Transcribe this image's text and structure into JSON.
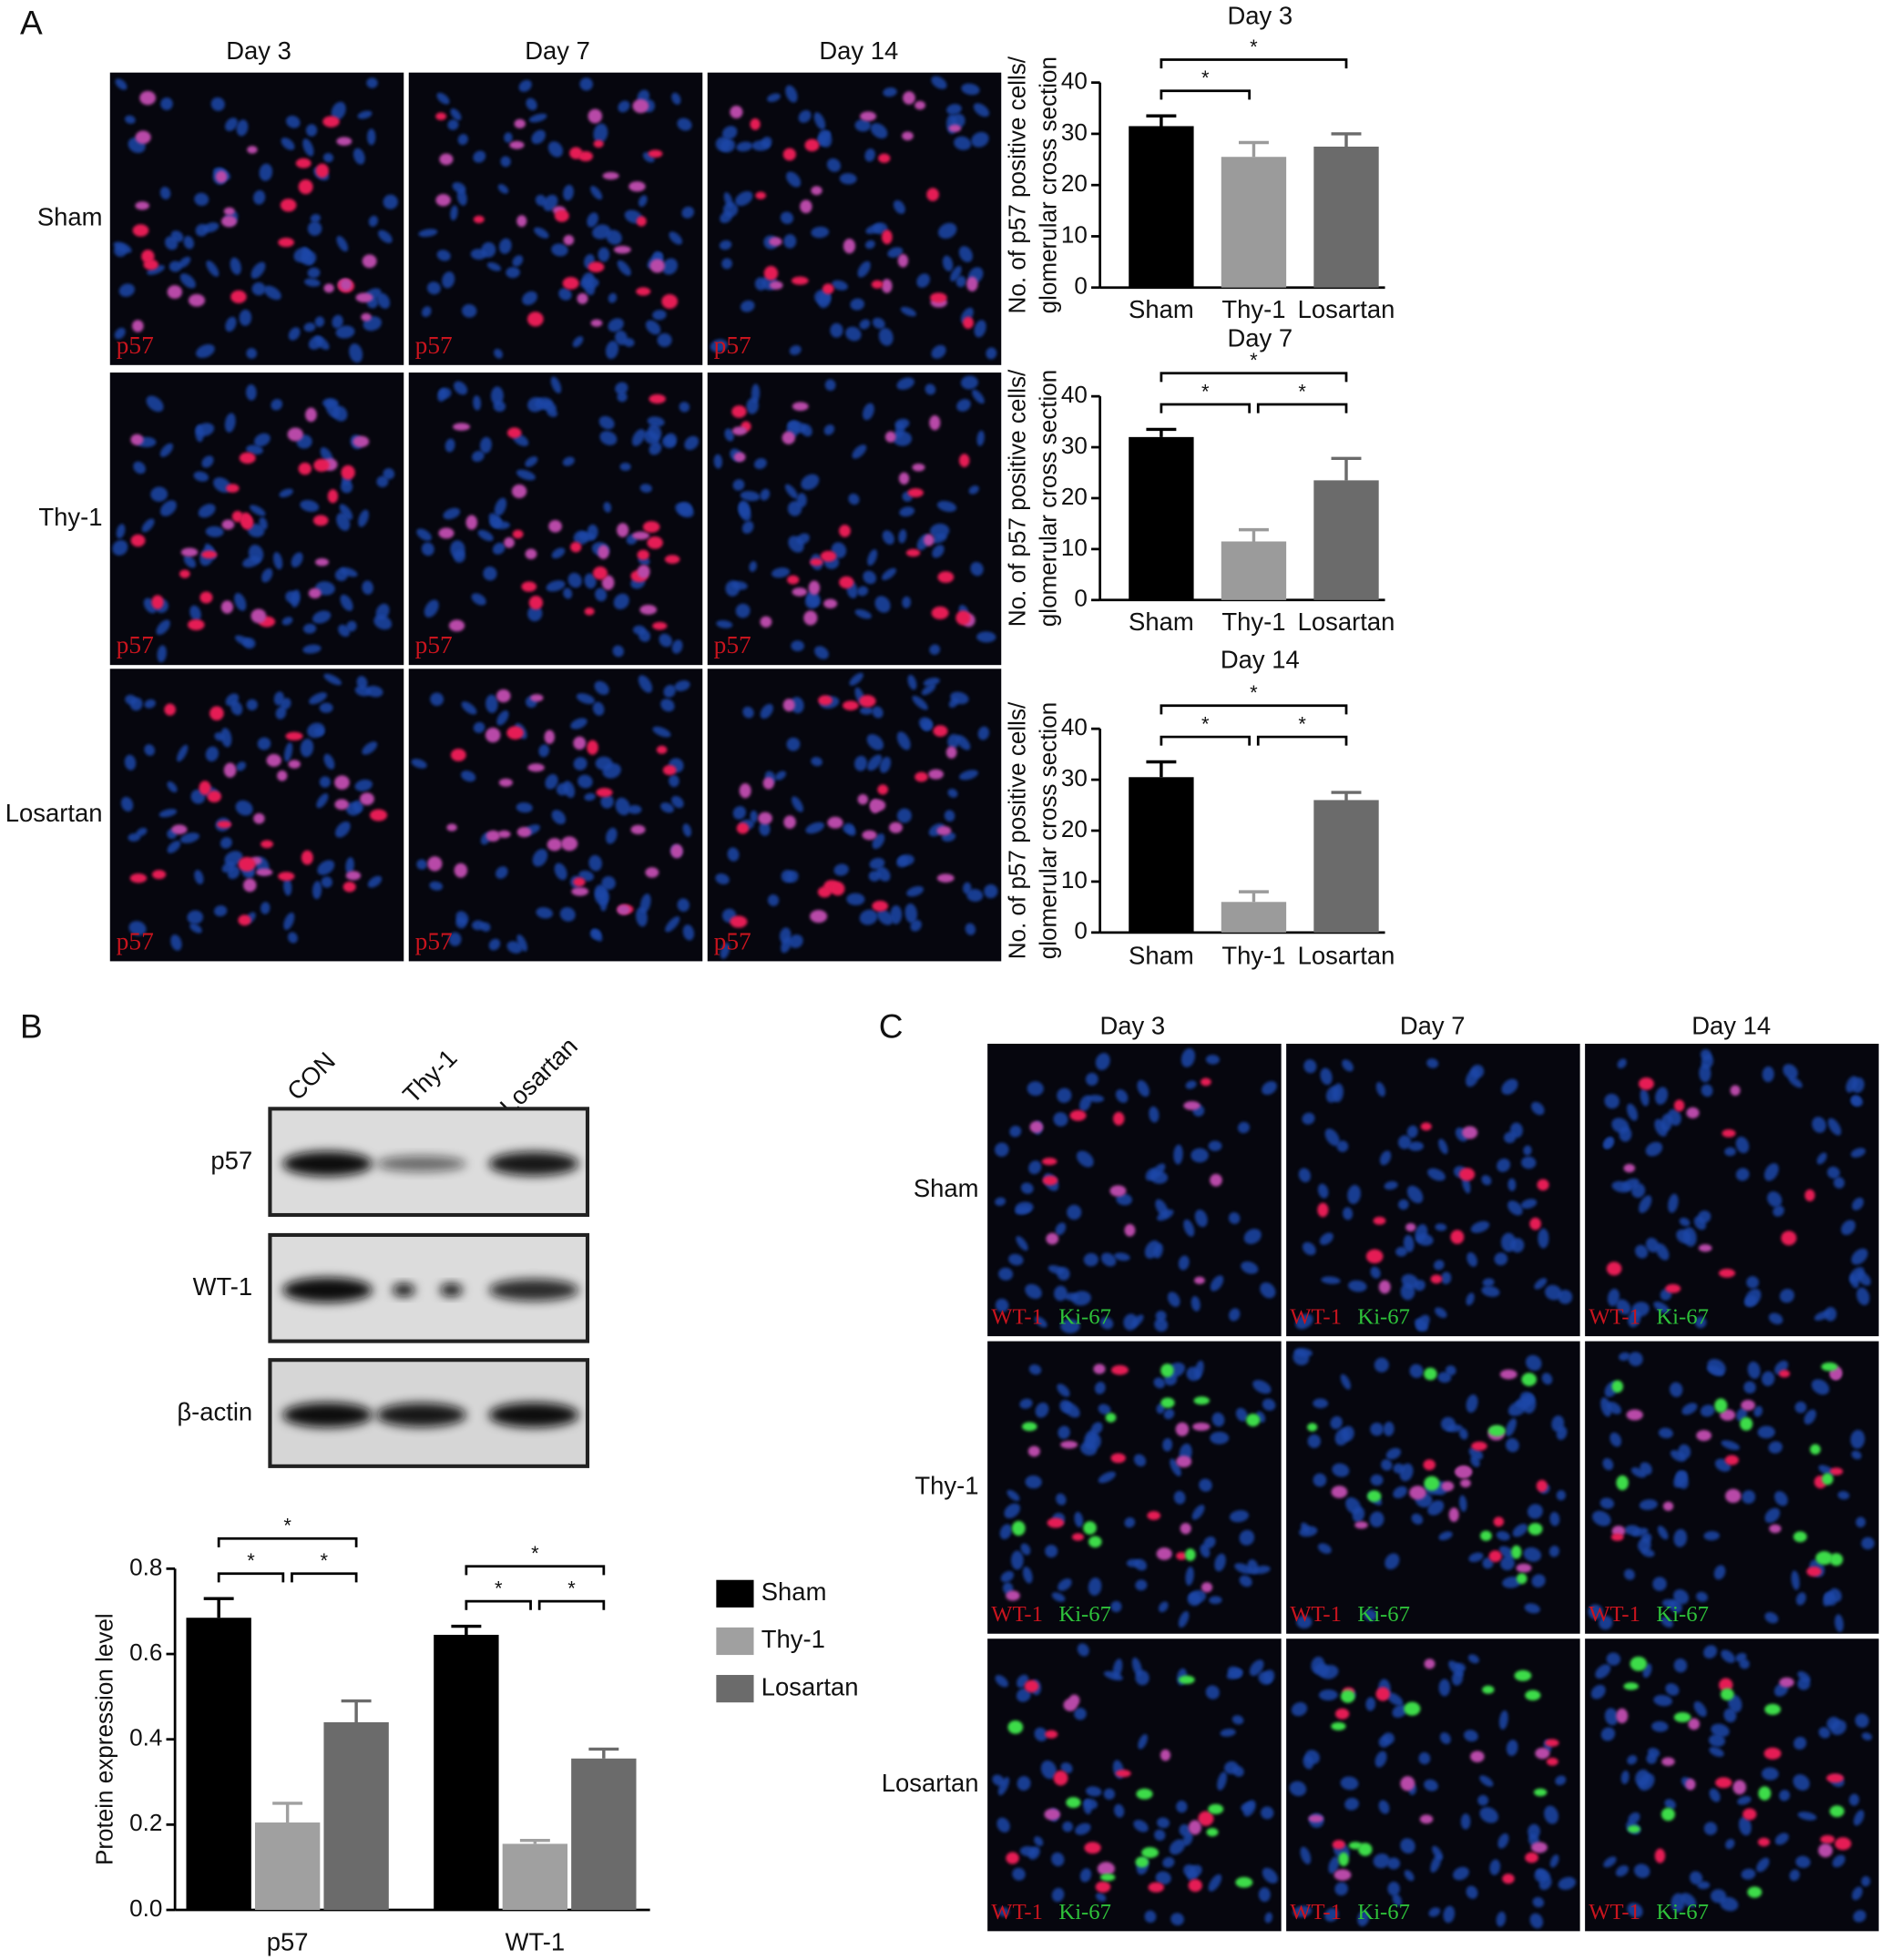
{
  "panel_labels": [
    "A",
    "B",
    "C"
  ],
  "panel_a": {
    "columns": [
      "Day 3",
      "Day 7",
      "Day 14"
    ],
    "rows": [
      "Sham",
      "Thy-1",
      "Losartan"
    ],
    "stain": "p57"
  },
  "blot": {
    "lanes": [
      "CON",
      "Thy-1",
      "Losartan"
    ],
    "bands": [
      "p57",
      "WT-1",
      "β-actin"
    ]
  },
  "panel_c": {
    "columns": [
      "Day 3",
      "Day 7",
      "Day 14"
    ],
    "rows": [
      "Sham",
      "Thy-1",
      "Losartan"
    ],
    "stain_red": "WT-1",
    "stain_green": "Ki-67"
  },
  "chart_data": [
    {
      "type": "bar",
      "title": "Day 3",
      "ylabel": [
        "No. of p57 positive cells/",
        "glomerular cross section"
      ],
      "categories": [
        "Sham",
        "Thy-1",
        "Losartan"
      ],
      "values": [
        31.5,
        25.5,
        27.5
      ],
      "errors": [
        2,
        2.8,
        2.5
      ],
      "colors": [
        "#000000",
        "#9b9b9b",
        "#6b6b6b"
      ],
      "ylim": [
        0,
        40
      ],
      "yticks": [
        0,
        10,
        20,
        30,
        40
      ],
      "brackets": [
        {
          "between": [
            "Sham",
            "Losartan"
          ],
          "label": "*"
        },
        {
          "between": [
            "Sham",
            "Thy-1"
          ],
          "label": "*"
        }
      ]
    },
    {
      "type": "bar",
      "title": "Day 7",
      "ylabel": [
        "No. of p57 positive cells/",
        "glomerular cross section"
      ],
      "categories": [
        "Sham",
        "Thy-1",
        "Losartan"
      ],
      "values": [
        32,
        11.5,
        23.5
      ],
      "errors": [
        1.5,
        2.3,
        4.3
      ],
      "colors": [
        "#000000",
        "#9b9b9b",
        "#6b6b6b"
      ],
      "ylim": [
        0,
        40
      ],
      "yticks": [
        0,
        10,
        20,
        30,
        40
      ],
      "brackets": [
        {
          "between": [
            "Sham",
            "Losartan"
          ],
          "label": "*"
        },
        {
          "between": [
            "Sham",
            "Thy-1"
          ],
          "label": "*"
        },
        {
          "between": [
            "Thy-1",
            "Losartan"
          ],
          "label": "*"
        }
      ]
    },
    {
      "type": "bar",
      "title": "Day 14",
      "ylabel": [
        "No. of p57 positive cells/",
        "glomerular cross section"
      ],
      "categories": [
        "Sham",
        "Thy-1",
        "Losartan"
      ],
      "values": [
        30.5,
        6,
        26
      ],
      "errors": [
        3,
        2,
        1.5
      ],
      "colors": [
        "#000000",
        "#9b9b9b",
        "#6b6b6b"
      ],
      "ylim": [
        0,
        40
      ],
      "yticks": [
        0,
        10,
        20,
        30,
        40
      ],
      "brackets": [
        {
          "between": [
            "Sham",
            "Losartan"
          ],
          "label": "*"
        },
        {
          "between": [
            "Sham",
            "Thy-1"
          ],
          "label": "*"
        },
        {
          "between": [
            "Thy-1",
            "Losartan"
          ],
          "label": "*"
        }
      ]
    },
    {
      "type": "bar",
      "ylabel": "Protein expression level",
      "categories": [
        "p57",
        "WT-1"
      ],
      "series": [
        {
          "name": "Sham",
          "color": "#000000",
          "values": [
            0.685,
            0.645
          ],
          "errors": [
            0.045,
            0.02
          ]
        },
        {
          "name": "Thy-1",
          "color": "#a0a0a0",
          "values": [
            0.205,
            0.155
          ],
          "errors": [
            0.045,
            0.008
          ]
        },
        {
          "name": "Losartan",
          "color": "#6b6b6b",
          "values": [
            0.44,
            0.355
          ],
          "errors": [
            0.05,
            0.022
          ]
        }
      ],
      "ylim": [
        0,
        0.8
      ],
      "yticks": [
        {
          "value": 0,
          "label": "0.0"
        },
        0.2,
        0.4,
        0.6,
        0.8
      ],
      "legend": "right",
      "brackets": [
        {
          "group": "p57",
          "between": [
            "Sham",
            "Losartan"
          ],
          "label": "*"
        },
        {
          "group": "p57",
          "between": [
            "Sham",
            "Thy-1"
          ],
          "label": "*"
        },
        {
          "group": "p57",
          "between": [
            "Thy-1",
            "Losartan"
          ],
          "label": "*"
        },
        {
          "group": "WT-1",
          "between": [
            "Sham",
            "Losartan"
          ],
          "label": "*"
        },
        {
          "group": "WT-1",
          "between": [
            "Sham",
            "Thy-1"
          ],
          "label": "*"
        },
        {
          "group": "WT-1",
          "between": [
            "Thy-1",
            "Losartan"
          ],
          "label": "*"
        }
      ]
    }
  ]
}
